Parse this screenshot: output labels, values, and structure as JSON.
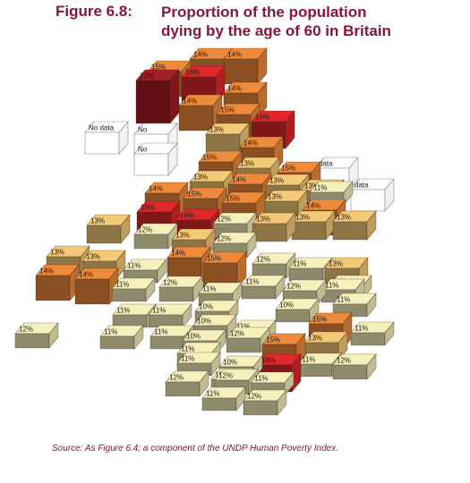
{
  "figure": {
    "label": "Figure 6.8:",
    "title_line1": "Proportion of the population",
    "title_line2": "dying by the age of 60 in Britain",
    "source": "Source: As Figure 6.4; a component of the UNDP Human Poverty Index."
  },
  "chart_data": {
    "type": "heatmap",
    "title": "Proportion of the population dying by the age of 60 in Britain",
    "unit": "%",
    "color_scale": {
      "10": "#f5f0bc",
      "11": "#f5f0bc",
      "12": "#f5f0bc",
      "13": "#f4c977",
      "14": "#ee8a3c",
      "15": "#ee8a3c",
      "16": "#e0282b",
      "22": "#a51e24",
      "none": "#ffffff"
    },
    "missing_label": "No data",
    "cells": [
      {
        "value": 14,
        "label": "14%"
      },
      {
        "value": 14,
        "label": "14%"
      },
      {
        "value": 15,
        "label": "15%"
      },
      {
        "value": 22,
        "label": "22%"
      },
      {
        "value": 16,
        "label": "16%"
      },
      {
        "value": 14,
        "label": "14%"
      },
      {
        "value": 14,
        "label": "14%"
      },
      {
        "value": 15,
        "label": "15%"
      },
      {
        "value": 16,
        "label": "16%"
      },
      {
        "value": null,
        "label": "No data"
      },
      {
        "value": null,
        "label": "No"
      },
      {
        "value": null,
        "label": "No"
      },
      {
        "value": 13,
        "label": "13%"
      },
      {
        "value": 14,
        "label": "14%"
      },
      {
        "value": 15,
        "label": "15%"
      },
      {
        "value": 13,
        "label": "13%"
      },
      {
        "value": 15,
        "label": "15%"
      },
      {
        "value": null,
        "label": "data"
      },
      {
        "value": 13,
        "label": "13%"
      },
      {
        "value": 14,
        "label": "14%"
      },
      {
        "value": 13,
        "label": "13%"
      },
      {
        "value": 13,
        "label": "13%"
      },
      {
        "value": 11,
        "label": "11%"
      },
      {
        "value": null,
        "label": "data"
      },
      {
        "value": 14,
        "label": "14%"
      },
      {
        "value": 15,
        "label": "15%"
      },
      {
        "value": 15,
        "label": "15%"
      },
      {
        "value": 13,
        "label": "13%"
      },
      {
        "value": 14,
        "label": "14%"
      },
      {
        "value": 16,
        "label": "16%"
      },
      {
        "value": 16,
        "label": "16%"
      },
      {
        "value": 12,
        "label": "12%"
      },
      {
        "value": 13,
        "label": "13%"
      },
      {
        "value": 13,
        "label": "13%"
      },
      {
        "value": 13,
        "label": "13%"
      },
      {
        "value": 13,
        "label": "13%"
      },
      {
        "value": 12,
        "label": "12%"
      },
      {
        "value": 13,
        "label": "13%"
      },
      {
        "value": 12,
        "label": "12%"
      },
      {
        "value": 13,
        "label": "13%"
      },
      {
        "value": 13,
        "label": "13%"
      },
      {
        "value": 11,
        "label": "11%"
      },
      {
        "value": 14,
        "label": "14%"
      },
      {
        "value": 15,
        "label": "15%"
      },
      {
        "value": 12,
        "label": "12%"
      },
      {
        "value": 11,
        "label": "11%"
      },
      {
        "value": 13,
        "label": "13%"
      },
      {
        "value": 11,
        "label": "11%"
      },
      {
        "value": 11,
        "label": "11%"
      },
      {
        "value": 14,
        "label": "14%"
      },
      {
        "value": 14,
        "label": "14%"
      },
      {
        "value": 11,
        "label": "11%"
      },
      {
        "value": 12,
        "label": "12%"
      },
      {
        "value": 11,
        "label": "11%"
      },
      {
        "value": 11,
        "label": "11%"
      },
      {
        "value": 12,
        "label": "12%"
      },
      {
        "value": 11,
        "label": "11%"
      },
      {
        "value": 11,
        "label": "11%"
      },
      {
        "value": 10,
        "label": "10%"
      },
      {
        "value": 10,
        "label": "10%"
      },
      {
        "value": 10,
        "label": "10%"
      },
      {
        "value": 11,
        "label": "11%"
      },
      {
        "value": 11,
        "label": "11%"
      },
      {
        "value": 15,
        "label": "15%"
      },
      {
        "value": 12,
        "label": "12%"
      },
      {
        "value": 11,
        "label": "11%"
      },
      {
        "value": 11,
        "label": "11%"
      },
      {
        "value": 10,
        "label": "10%"
      },
      {
        "value": 12,
        "label": "12%"
      },
      {
        "value": 11,
        "label": "11%"
      },
      {
        "value": 15,
        "label": "15%"
      },
      {
        "value": 13,
        "label": "13%"
      },
      {
        "value": 11,
        "label": "11%"
      },
      {
        "value": 11,
        "label": "11%"
      },
      {
        "value": 10,
        "label": "10%"
      },
      {
        "value": 12,
        "label": "12%"
      },
      {
        "value": 16,
        "label": "16%"
      },
      {
        "value": 11,
        "label": "11%"
      },
      {
        "value": 12,
        "label": "12%"
      },
      {
        "value": 12,
        "label": "12%"
      },
      {
        "value": 10,
        "label": "10%"
      },
      {
        "value": 11,
        "label": "11%"
      },
      {
        "value": 11,
        "label": "11%"
      },
      {
        "value": 12,
        "label": "12%"
      }
    ]
  }
}
